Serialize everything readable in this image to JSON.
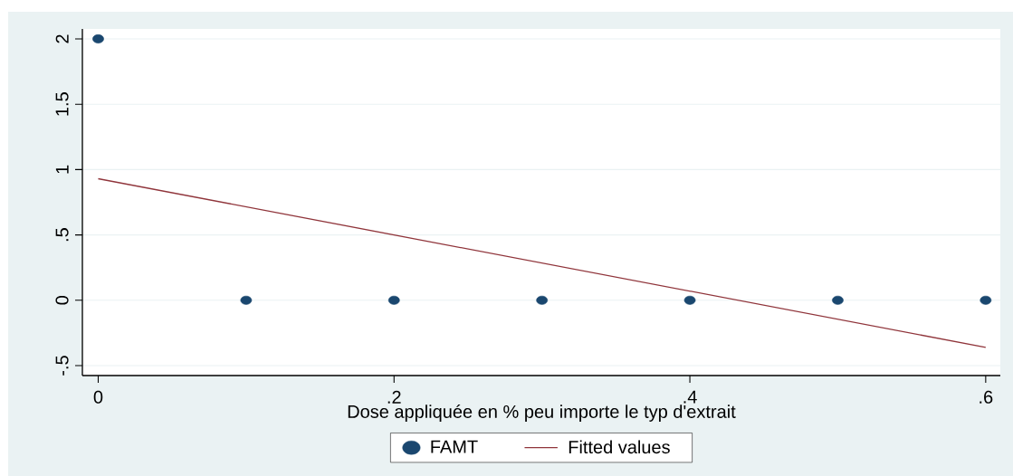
{
  "chart_data": {
    "type": "scatter",
    "xlabel": "Dose appliquée en % peu importe le typ d'extrait",
    "series": [
      {
        "name": "FAMT",
        "color": "#1a476f",
        "marker": "circle",
        "x": [
          0,
          0.1,
          0.2,
          0.3,
          0.4,
          0.5,
          0.6
        ],
        "values": [
          2,
          0,
          0,
          0,
          0,
          0,
          0
        ]
      },
      {
        "name": "Fitted values",
        "type": "line",
        "color": "#90353b",
        "marker": "none",
        "line_style": "solid",
        "x": [
          0,
          0.6
        ],
        "values": [
          0.93,
          -0.36
        ]
      }
    ],
    "xlim": [
      -0.0107,
      0.6099
    ],
    "ylim": [
      -0.576,
      2.076
    ],
    "xticks": [
      0,
      {
        "value": 0.2,
        "label": ".2"
      },
      {
        "value": 0.4,
        "label": ".4"
      },
      {
        "value": 0.6,
        "label": ".6"
      }
    ],
    "yticks": [
      {
        "value": -0.5,
        "label": "-.5"
      },
      0,
      {
        "value": 0.5,
        "label": ".5"
      },
      1,
      1.5,
      2
    ],
    "grid": "y",
    "legend": "bottom"
  }
}
